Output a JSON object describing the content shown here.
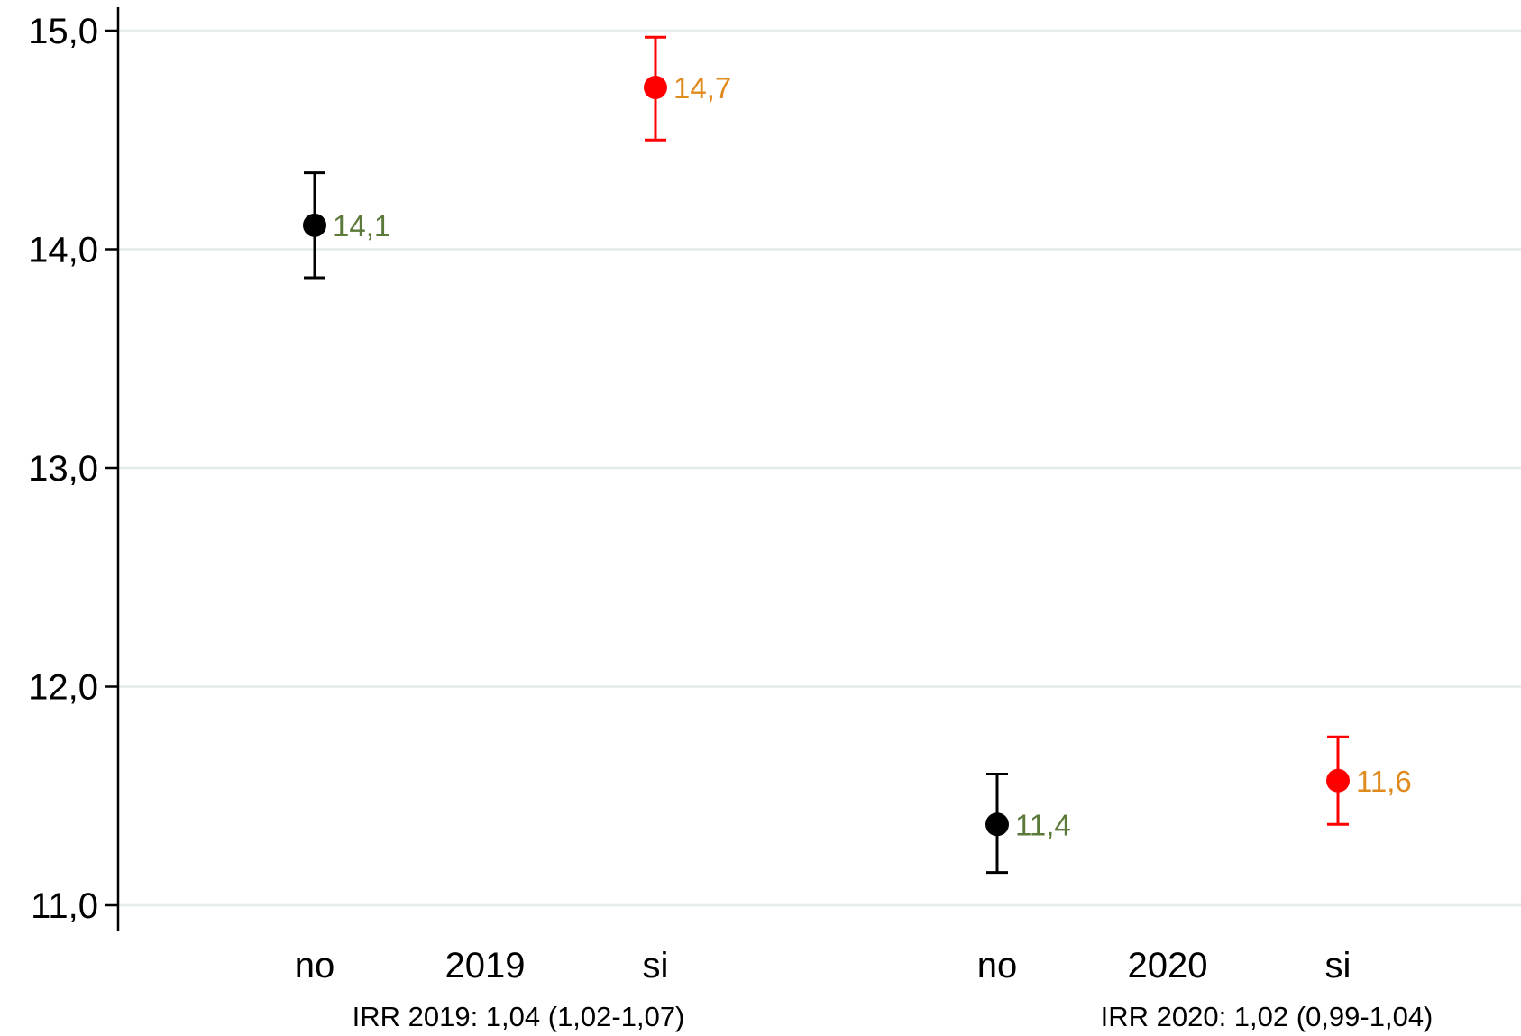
{
  "chart_data": {
    "type": "scatter",
    "ylim": [
      10.9,
      15.1
    ],
    "yticks": [
      11.0,
      12.0,
      13.0,
      14.0,
      15.0
    ],
    "ytick_labels": [
      "11,0",
      "12,0",
      "13,0",
      "14,0",
      "15,0"
    ],
    "grid": true,
    "groups": [
      {
        "label": "2019",
        "note": "IRR 2019: 1,04 (1,02-1,07)",
        "points": [
          {
            "category": "no",
            "value": 14.11,
            "ci_low": 13.87,
            "ci_high": 14.35,
            "value_label": "14,1"
          },
          {
            "category": "si",
            "value": 14.74,
            "ci_low": 14.5,
            "ci_high": 14.97,
            "value_label": "14,7"
          }
        ]
      },
      {
        "label": "2020",
        "note": "IRR 2020: 1,02 (0,99-1,04)",
        "points": [
          {
            "category": "no",
            "value": 11.37,
            "ci_low": 11.15,
            "ci_high": 11.6,
            "value_label": "11,4"
          },
          {
            "category": "si",
            "value": 11.57,
            "ci_low": 11.37,
            "ci_high": 11.77,
            "value_label": "11,6"
          }
        ]
      }
    ],
    "colors": {
      "no_marker": "#000000",
      "si_marker": "#ff0000",
      "no_label": "#5b7a3a",
      "si_label": "#e08a1e",
      "grid": "#e4ecec"
    }
  }
}
